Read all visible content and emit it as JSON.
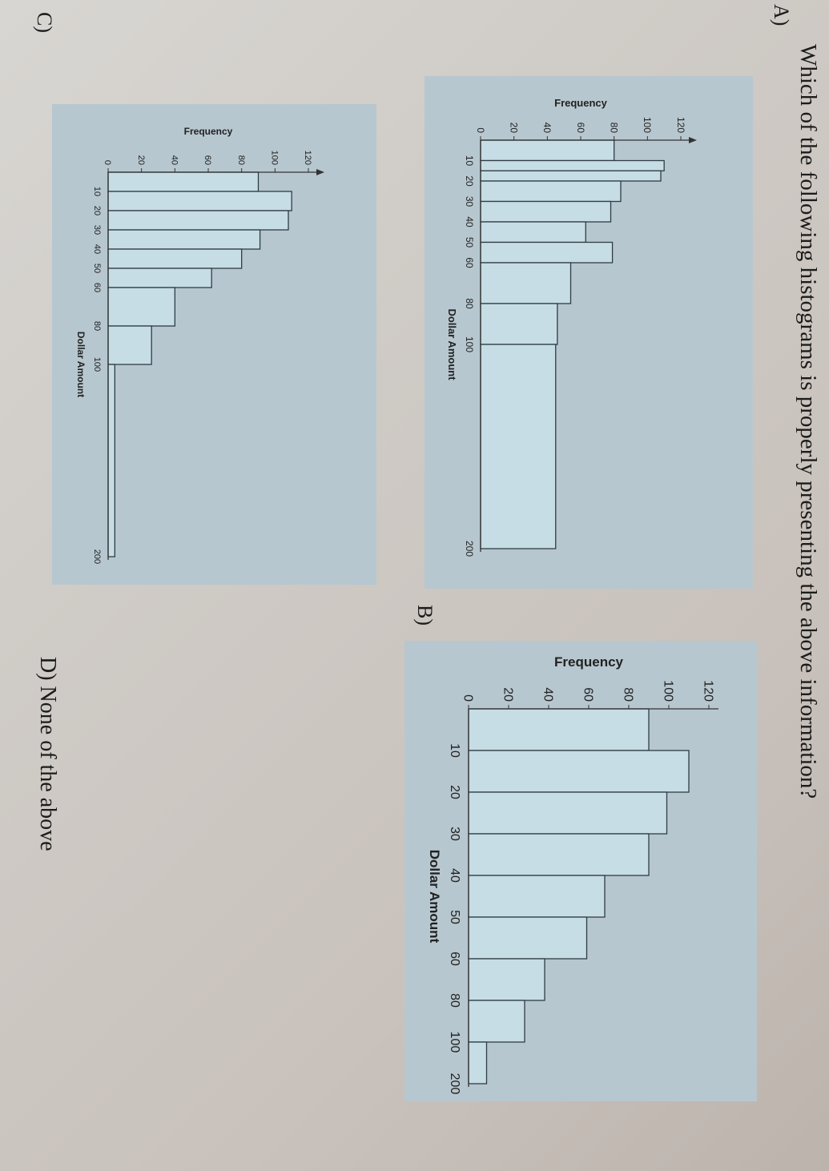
{
  "question": "Which of the following histograms is properly presenting the above information?",
  "options": [
    {
      "label": "A)",
      "chart_data": {
        "type": "bar",
        "title": "",
        "ylabel": "Frequency",
        "xlabel": "Dollar Amount",
        "ylim": [
          0,
          120
        ],
        "yticks": [
          "0",
          "20",
          "40",
          "60",
          "80",
          "100",
          "120"
        ],
        "bins": [
          {
            "from": 0,
            "to": 10,
            "value": 80
          },
          {
            "from": 10,
            "to": 15,
            "value": 110
          },
          {
            "from": 15,
            "to": 20,
            "value": 108
          },
          {
            "from": 20,
            "to": 30,
            "value": 84
          },
          {
            "from": 30,
            "to": 40,
            "value": 78
          },
          {
            "from": 40,
            "to": 50,
            "value": 63
          },
          {
            "from": 50,
            "to": 60,
            "value": 79
          },
          {
            "from": 60,
            "to": 80,
            "value": 54
          },
          {
            "from": 80,
            "to": 100,
            "value": 46
          },
          {
            "from": 100,
            "to": 200,
            "value": 45
          }
        ],
        "xticks": [
          "10",
          "20",
          "30",
          "40",
          "50",
          "60",
          "80",
          "100",
          "200"
        ]
      }
    },
    {
      "label": "B)",
      "chart_data": {
        "type": "bar",
        "title": "",
        "ylabel": "Frequency",
        "xlabel": "Dollar Amount",
        "ylim": [
          0,
          120
        ],
        "yticks": [
          "0",
          "20",
          "40",
          "60",
          "80",
          "100",
          "120"
        ],
        "bins": [
          {
            "from": 0,
            "to": 10,
            "value": 90
          },
          {
            "from": 10,
            "to": 20,
            "value": 110
          },
          {
            "from": 20,
            "to": 30,
            "value": 99
          },
          {
            "from": 30,
            "to": 40,
            "value": 90
          },
          {
            "from": 40,
            "to": 50,
            "value": 68
          },
          {
            "from": 50,
            "to": 60,
            "value": 59
          },
          {
            "from": 60,
            "to": 80,
            "value": 38
          },
          {
            "from": 80,
            "to": 100,
            "value": 28
          },
          {
            "from": 100,
            "to": 200,
            "value": 9
          }
        ],
        "xticks": [
          "10",
          "20",
          "30",
          "40",
          "50",
          "60",
          "80",
          "100",
          "200"
        ]
      }
    },
    {
      "label": "C)",
      "chart_data": {
        "type": "bar",
        "title": "",
        "ylabel": "Frequency",
        "xlabel": "Dollar Amount",
        "ylim": [
          0,
          120
        ],
        "yticks": [
          "0",
          "20",
          "40",
          "60",
          "80",
          "100",
          "120"
        ],
        "bins": [
          {
            "from": 0,
            "to": 10,
            "value": 90
          },
          {
            "from": 10,
            "to": 20,
            "value": 110
          },
          {
            "from": 20,
            "to": 30,
            "value": 108
          },
          {
            "from": 30,
            "to": 40,
            "value": 91
          },
          {
            "from": 40,
            "to": 50,
            "value": 80
          },
          {
            "from": 50,
            "to": 60,
            "value": 62
          },
          {
            "from": 60,
            "to": 80,
            "value": 40
          },
          {
            "from": 80,
            "to": 100,
            "value": 26
          },
          {
            "from": 100,
            "to": 200,
            "value": 4
          }
        ],
        "xticks": [
          "10",
          "20",
          "30",
          "40",
          "50",
          "60",
          "80",
          "100",
          "200"
        ]
      }
    },
    {
      "label": "D) None of the above"
    }
  ]
}
